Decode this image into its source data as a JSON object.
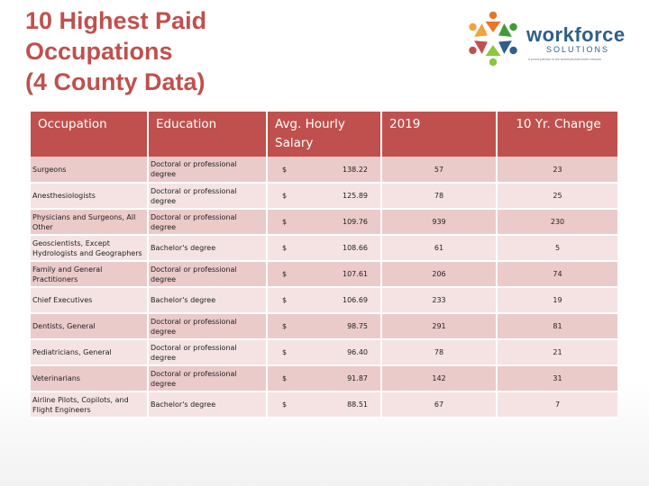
{
  "title_lines": [
    "10 Highest Paid",
    "Occupations",
    "(4 County Data)"
  ],
  "logo": {
    "word": "workforce",
    "sub": "SOLUTIONS",
    "tag": "A proud partner of the AmericanJobCenter network",
    "colors": [
      "#e8762b",
      "#3f9b3a",
      "#2e5f8a",
      "#8dc63f",
      "#c0504d",
      "#f4a23c"
    ]
  },
  "colors": {
    "accent": "#c0504d",
    "row_dark": "#ebcaca",
    "row_light": "#f5e3e3",
    "brand_blue": "#2e5f8a"
  },
  "table": {
    "headers": {
      "occupation": "Occupation",
      "education": "Education",
      "salary": "Avg. Hourly Salary",
      "year": "2019",
      "change": "10 Yr. Change"
    },
    "currency": "$",
    "rows": [
      {
        "occupation": "Surgeons",
        "education": "Doctoral or professional degree",
        "salary": "138.22",
        "year": "57",
        "change": "23"
      },
      {
        "occupation": "Anesthesiologists",
        "education": "Doctoral or professional degree",
        "salary": "125.89",
        "year": "78",
        "change": "25"
      },
      {
        "occupation": "Physicians and Surgeons, All Other",
        "education": "Doctoral or professional degree",
        "salary": "109.76",
        "year": "939",
        "change": "230"
      },
      {
        "occupation": "Geoscientists, Except Hydrologists and Geographers",
        "education": "Bachelor's degree",
        "salary": "108.66",
        "year": "61",
        "change": "5"
      },
      {
        "occupation": "Family and General Practitioners",
        "education": "Doctoral or professional degree",
        "salary": "107.61",
        "year": "206",
        "change": "74"
      },
      {
        "occupation": "Chief Executives",
        "education": "Bachelor's degree",
        "salary": "106.69",
        "year": "233",
        "change": "19"
      },
      {
        "occupation": "Dentists, General",
        "education": "Doctoral or professional degree",
        "salary": "98.75",
        "year": "291",
        "change": "81"
      },
      {
        "occupation": "Pediatricians, General",
        "education": "Doctoral or professional degree",
        "salary": "96.40",
        "year": "78",
        "change": "21"
      },
      {
        "occupation": "Veterinarians",
        "education": "Doctoral or professional degree",
        "salary": "91.87",
        "year": "142",
        "change": "31"
      },
      {
        "occupation": "Airline Pilots, Copilots, and Flight Engineers",
        "education": "Bachelor's degree",
        "salary": "88.51",
        "year": "67",
        "change": "7"
      }
    ]
  }
}
